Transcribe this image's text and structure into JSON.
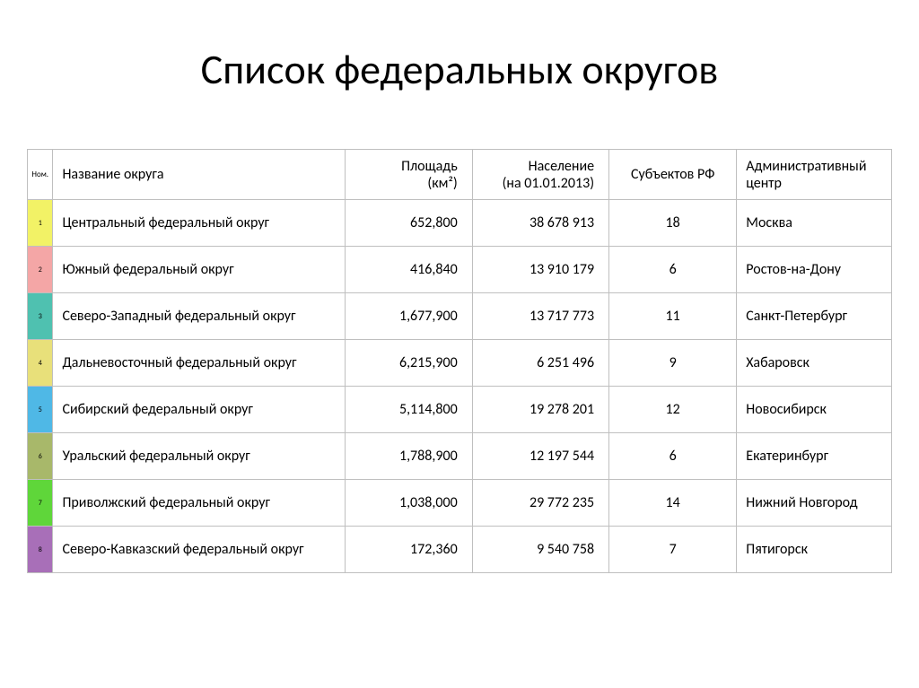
{
  "title": "Список федеральных округов",
  "table": {
    "columns": [
      {
        "label": "Ном.",
        "class": "col-num"
      },
      {
        "label": "Название округа",
        "class": "col-name"
      },
      {
        "label": "Площадь\n(км²)",
        "class": "col-area"
      },
      {
        "label": "Население\n(на 01.01.2013)",
        "class": "col-pop"
      },
      {
        "label": "Субъектов РФ",
        "class": "col-subj"
      },
      {
        "label": "Административный центр",
        "class": "col-center"
      }
    ],
    "rows": [
      {
        "num": "1",
        "num_color": "#f2f266",
        "name": "Центральный федеральный округ",
        "area": "652,800",
        "pop": "38 678 913",
        "subj": "18",
        "center": "Москва"
      },
      {
        "num": "2",
        "num_color": "#f4a6a6",
        "name": "Южный федеральный округ",
        "area": "416,840",
        "pop": "13 910 179",
        "subj": "6",
        "center": "Ростов-на-Дону"
      },
      {
        "num": "3",
        "num_color": "#4fc1b0",
        "name": "Северо-Западный федеральный округ",
        "area": "1,677,900",
        "pop": "13 717 773",
        "subj": "11",
        "center": "Санкт-Петербург"
      },
      {
        "num": "4",
        "num_color": "#e8e07a",
        "name": "Дальневосточный федеральный округ",
        "area": "6,215,900",
        "pop": "6 251 496",
        "subj": "9",
        "center": "Хабаровск"
      },
      {
        "num": "5",
        "num_color": "#4fb8e6",
        "name": "Сибирский федеральный округ",
        "area": "5,114,800",
        "pop": "19 278 201",
        "subj": "12",
        "center": "Новосибирск"
      },
      {
        "num": "6",
        "num_color": "#a8b86a",
        "name": "Уральский федеральный округ",
        "area": "1,788,900",
        "pop": "12 197 544",
        "subj": "6",
        "center": "Екатеринбург"
      },
      {
        "num": "7",
        "num_color": "#5fd63a",
        "name": "Приволжский федеральный округ",
        "area": "1,038,000",
        "pop": "29 772 235",
        "subj": "14",
        "center": "Нижний Новгород"
      },
      {
        "num": "8",
        "num_color": "#a86fb8",
        "name": "Северо-Кавказский федеральный округ",
        "area": "172,360",
        "pop": "9 540 758",
        "subj": "7",
        "center": "Пятигорск"
      }
    ],
    "border_color": "#bfbfbf",
    "background_color": "#ffffff",
    "header_fontsize": 16,
    "body_fontsize": 16,
    "num_fontsize": 8
  },
  "title_fontsize": 46,
  "title_color": "#000000"
}
